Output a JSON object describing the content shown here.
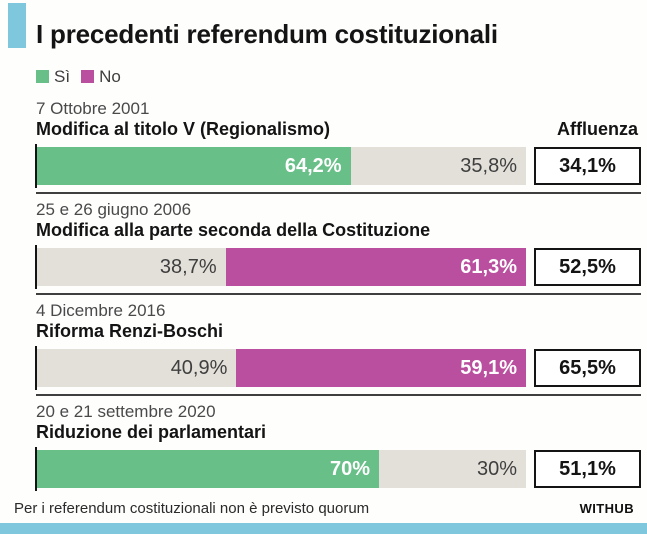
{
  "header": {
    "title": "I precedenti referendum costituzionali",
    "legend": {
      "si": {
        "label": "Sì",
        "color": "#68bf88"
      },
      "no": {
        "label": "No",
        "color": "#b94f9e"
      }
    }
  },
  "affluenza_header": "Affluenza",
  "sections": [
    {
      "date": "7 Ottobre 2001",
      "name": "Modifica al titolo V (Regionalismo)",
      "winner": "si",
      "si_label": "64,2%",
      "si_width": "64.2%",
      "no_label": "35,8%",
      "no_width": "35.8%",
      "affluenza": "34,1%"
    },
    {
      "date": "25 e 26 giugno 2006",
      "name": "Modifica alla parte seconda della Costituzione",
      "winner": "no",
      "si_label": "38,7%",
      "si_width": "38.7%",
      "no_label": "61,3%",
      "no_width": "61.3%",
      "affluenza": "52,5%"
    },
    {
      "date": "4 Dicembre 2016",
      "name": "Riforma Renzi-Boschi",
      "winner": "no",
      "si_label": "40,9%",
      "si_width": "40.9%",
      "no_label": "59,1%",
      "no_width": "59.1%",
      "affluenza": "65,5%"
    },
    {
      "date": "20 e 21 settembre 2020",
      "name": "Riduzione dei parlamentari",
      "winner": "si",
      "si_label": "70%",
      "si_width": "70%",
      "no_label": "30%",
      "no_width": "30%",
      "affluenza": "51,1%"
    }
  ],
  "footer": {
    "note": "Per i referendum costituzionali non è previsto quorum",
    "credit": "WITHUB"
  },
  "colors": {
    "accent_blue": "#7ec7dc",
    "si_green": "#68bf88",
    "no_magenta": "#b94f9e",
    "neutral_grey": "#e3e0d9",
    "divider": "#3f3f3f",
    "text_dark": "#141414",
    "text_medium": "#4a4a4a"
  },
  "chart_data": {
    "type": "bar",
    "subtype": "horizontal-stacked-100-percent",
    "title": "I precedenti referendum costituzionali",
    "legend_entries": [
      "Sì",
      "No"
    ],
    "legend_position": "top-left",
    "categories": [
      "7 Ottobre 2001 — Modifica al titolo V (Regionalismo)",
      "25 e 26 giugno 2006 — Modifica alla parte seconda della Costituzione",
      "4 Dicembre 2016 — Riforma Renzi-Boschi",
      "20 e 21 settembre 2020 — Riduzione dei parlamentari"
    ],
    "series": [
      {
        "name": "Sì",
        "values": [
          64.2,
          38.7,
          40.9,
          70
        ]
      },
      {
        "name": "No",
        "values": [
          35.8,
          61.3,
          59.1,
          30
        ]
      },
      {
        "name": "Affluenza",
        "values": [
          34.1,
          52.5,
          65.5,
          51.1
        ]
      }
    ],
    "winner_per_category": [
      "si",
      "no",
      "no",
      "si"
    ],
    "value_format": "percent, Italian comma decimals",
    "xlim": [
      0,
      100
    ],
    "grid": false,
    "annotation": "Per i referendum costituzionali non è previsto quorum",
    "credit": "WITHUB"
  }
}
